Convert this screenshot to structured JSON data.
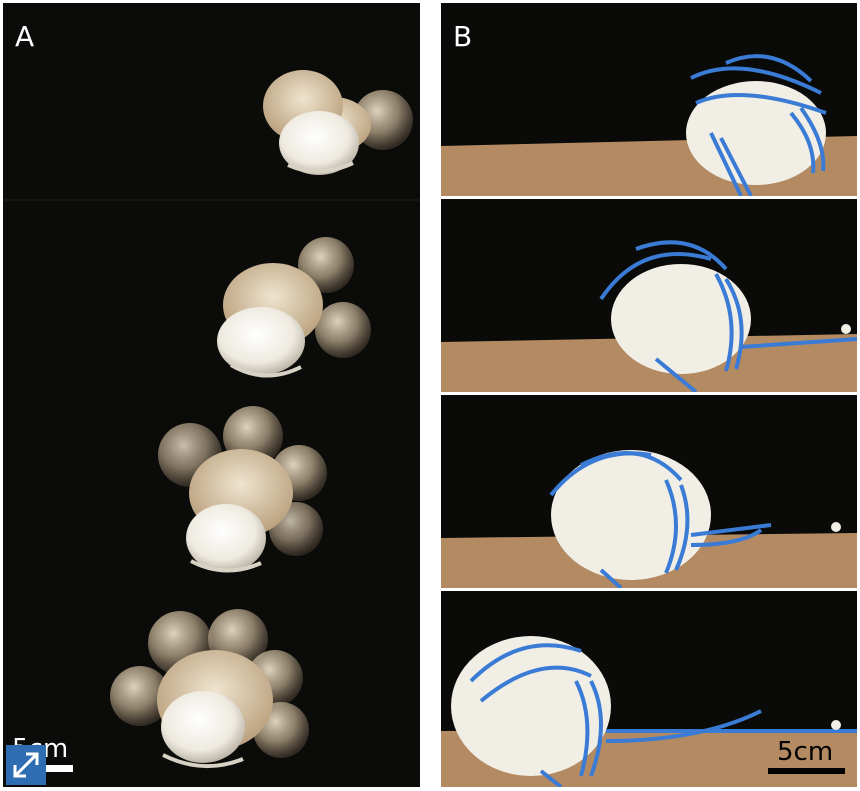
{
  "panel_a": {
    "label": "A",
    "scale_bar_label": "5cm"
  },
  "panel_b": {
    "label": "B",
    "scale_bar_label": "5cm"
  },
  "expand_button": {
    "icon": "expand-arrows-icon"
  },
  "colors": {
    "background": "#0b0b0a",
    "robot_body": "#f1eee6",
    "straps": "#3a7bd5",
    "floor": "#b48a62"
  }
}
